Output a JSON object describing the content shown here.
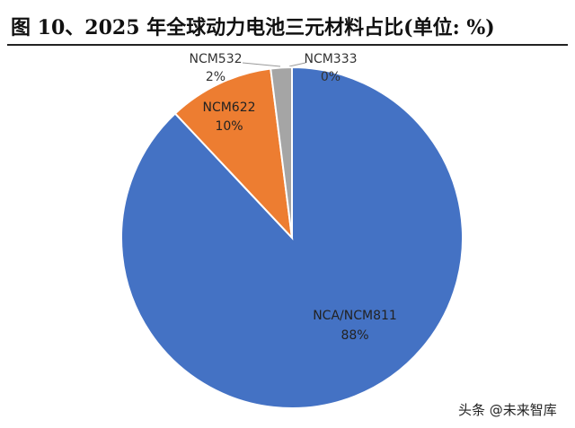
{
  "chart_data": {
    "type": "pie",
    "title": "图 10、2025 年全球动力电池三元材料占比(单位: %)",
    "categories": [
      "NCA/NCM811",
      "NCM622",
      "NCM532",
      "NCM333"
    ],
    "values": [
      88,
      10,
      2,
      0
    ],
    "value_labels": [
      "88%",
      "10%",
      "2%",
      "0%"
    ],
    "colors": [
      "#4472c4",
      "#ed7d31",
      "#a5a5a5",
      "#ffc000"
    ],
    "watermark": "头条 @未来智库"
  }
}
